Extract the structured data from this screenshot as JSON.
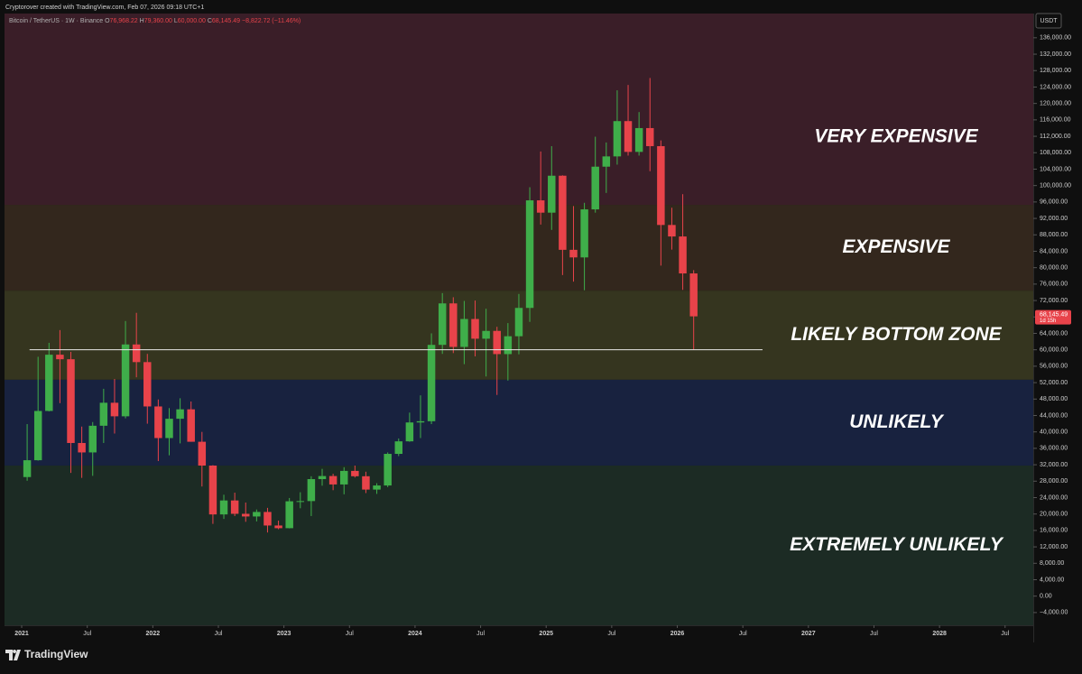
{
  "header": {
    "credit": "Cryptorover created with TradingView.com, Feb 07, 2026 09:18 UTC+1"
  },
  "legend": {
    "symbol": "Bitcoin / TetherUS · 1W · Binance",
    "o_label": "O",
    "open": "76,968.22",
    "h_label": "H",
    "high": "79,360.00",
    "l_label": "L",
    "low": "60,000.00",
    "c_label": "C",
    "close": "68,145.49",
    "change": "−8,822.72 (−11.46%)"
  },
  "footer": {
    "logo": "TradingView"
  },
  "chart_data": {
    "type": "candlestick",
    "currency": "USDT",
    "up_color": "#3fae4a",
    "down_color": "#e8434a",
    "xlim": [
      2020.869,
      2028.715
    ],
    "ylim": [
      -7100,
      141900
    ],
    "xticks": [
      2021,
      {
        "value": 2021.5,
        "label": "Jul"
      },
      2022,
      {
        "value": 2022.5,
        "label": "Jul"
      },
      2023,
      {
        "value": 2023.5,
        "label": "Jul"
      },
      2024,
      {
        "value": 2024.5,
        "label": "Jul"
      },
      2025,
      {
        "value": 2025.5,
        "label": "Jul"
      },
      2026,
      {
        "value": 2026.5,
        "label": "Jul"
      },
      2027,
      {
        "value": 2027.5,
        "label": "Jul"
      },
      2028,
      {
        "value": 2028.5,
        "label": "Jul"
      }
    ],
    "yticks": [
      {
        "value": -4000,
        "label": "−4,000.00"
      },
      {
        "value": 0,
        "label": "0.00"
      },
      {
        "value": 4000,
        "label": "4,000.00"
      },
      {
        "value": 8000,
        "label": "8,000.00"
      },
      {
        "value": 12000,
        "label": "12,000.00"
      },
      {
        "value": 16000,
        "label": "16,000.00"
      },
      {
        "value": 20000,
        "label": "20,000.00"
      },
      {
        "value": 24000,
        "label": "24,000.00"
      },
      {
        "value": 28000,
        "label": "28,000.00"
      },
      {
        "value": 32000,
        "label": "32,000.00"
      },
      {
        "value": 36000,
        "label": "36,000.00"
      },
      {
        "value": 40000,
        "label": "40,000.00"
      },
      {
        "value": 44000,
        "label": "44,000.00"
      },
      {
        "value": 48000,
        "label": "48,000.00"
      },
      {
        "value": 52000,
        "label": "52,000.00"
      },
      {
        "value": 56000,
        "label": "56,000.00"
      },
      {
        "value": 60000,
        "label": "60,000.00"
      },
      {
        "value": 64000,
        "label": "64,000.00"
      },
      {
        "value": 68000,
        "label": "68,000.00"
      },
      {
        "value": 72000,
        "label": "72,000.00"
      },
      {
        "value": 76000,
        "label": "76,000.00"
      },
      {
        "value": 80000,
        "label": "80,000.00"
      },
      {
        "value": 84000,
        "label": "84,000.00"
      },
      {
        "value": 88000,
        "label": "88,000.00"
      },
      {
        "value": 92000,
        "label": "92,000.00"
      },
      {
        "value": 96000,
        "label": "96,000.00"
      },
      {
        "value": 100000,
        "label": "100,000.00"
      },
      {
        "value": 104000,
        "label": "104,000.00"
      },
      {
        "value": 108000,
        "label": "108,000.00"
      },
      {
        "value": 112000,
        "label": "112,000.00"
      },
      {
        "value": 116000,
        "label": "116,000.00"
      },
      {
        "value": 120000,
        "label": "120,000.00"
      },
      {
        "value": 124000,
        "label": "124,000.00"
      },
      {
        "value": 128000,
        "label": "128,000.00"
      },
      {
        "value": 132000,
        "label": "132,000.00"
      },
      {
        "value": 136000,
        "label": "136,000.00"
      }
    ],
    "zones": [
      {
        "label": "VERY EXPENSIVE",
        "from": 95300,
        "to": 141900,
        "color": "#3a1e28"
      },
      {
        "label": "EXPENSIVE",
        "from": 74400,
        "to": 95300,
        "color": "#33271d"
      },
      {
        "label": "LIKELY BOTTOM ZONE",
        "from": 52700,
        "to": 74400,
        "color": "#35351f"
      },
      {
        "label": "UNLIKELY",
        "from": 31800,
        "to": 52700,
        "color": "#18223f"
      },
      {
        "label": "EXTREMELY UNLIKELY",
        "from": -7100,
        "to": 31800,
        "color": "#1c2b24"
      }
    ],
    "hline": {
      "value": 60000,
      "x": [
        2021.06,
        2026.65
      ]
    },
    "price_label": {
      "value": 68145.49,
      "label": "68,145.49",
      "countdown": "1d 15h"
    },
    "x": [
      "2021-01",
      "2021-02",
      "2021-03",
      "2021-04",
      "2021-05",
      "2021-06",
      "2021-07",
      "2021-08",
      "2021-09",
      "2021-10",
      "2021-11",
      "2021-12",
      "2022-01",
      "2022-02",
      "2022-03",
      "2022-04",
      "2022-05",
      "2022-06",
      "2022-07",
      "2022-08",
      "2022-09",
      "2022-10",
      "2022-11",
      "2022-12",
      "2023-01",
      "2023-02",
      "2023-03",
      "2023-04",
      "2023-05",
      "2023-06",
      "2023-07",
      "2023-08",
      "2023-09",
      "2023-10",
      "2023-11",
      "2023-12",
      "2024-01",
      "2024-02",
      "2024-03",
      "2024-04",
      "2024-05",
      "2024-06",
      "2024-07",
      "2024-08",
      "2024-09",
      "2024-10",
      "2024-11",
      "2024-12",
      "2025-01",
      "2025-02",
      "2025-03",
      "2025-04",
      "2025-05",
      "2025-06",
      "2025-07",
      "2025-08",
      "2025-09",
      "2025-10",
      "2025-11",
      "2025-12",
      "2026-01",
      "2026-02"
    ],
    "open": [
      29000,
      33100,
      45100,
      58800,
      57700,
      37300,
      35000,
      41500,
      47100,
      43800,
      61300,
      57000,
      46200,
      38500,
      43200,
      45500,
      37600,
      31800,
      19900,
      23300,
      20050,
      19400,
      20500,
      17200,
      16550,
      23100,
      23150,
      28500,
      29250,
      27200,
      30500,
      29200,
      25950,
      26950,
      34650,
      37700,
      42300,
      42600,
      61200,
      71300,
      60700,
      67500,
      62700,
      64600,
      58950,
      63300,
      70200,
      96400,
      93400,
      102400,
      84350,
      82500,
      94200,
      104600,
      107100,
      115700,
      108200,
      114000,
      109600,
      90400,
      87600,
      78600
    ],
    "high": [
      41900,
      58300,
      61700,
      64800,
      59500,
      41300,
      42400,
      50500,
      52900,
      67000,
      69000,
      59000,
      47900,
      45800,
      48200,
      47400,
      40000,
      31900,
      24700,
      25200,
      22800,
      21100,
      21500,
      18400,
      23900,
      25300,
      29200,
      31000,
      29800,
      31400,
      31800,
      30300,
      27500,
      35000,
      38400,
      44700,
      48900,
      64000,
      73800,
      72800,
      71900,
      72000,
      70000,
      65600,
      66500,
      73600,
      99600,
      108300,
      109600,
      102500,
      95000,
      95800,
      111900,
      110500,
      123200,
      124500,
      117900,
      126200,
      111000,
      94600,
      97900,
      79400
    ],
    "low": [
      28100,
      33000,
      45000,
      47000,
      30000,
      28800,
      29300,
      37300,
      39600,
      43300,
      53300,
      42000,
      32900,
      34300,
      37200,
      37600,
      26700,
      17600,
      18800,
      19500,
      18100,
      18200,
      15500,
      16300,
      16500,
      21400,
      19500,
      26900,
      25800,
      24800,
      28900,
      25100,
      24900,
      26550,
      34100,
      37600,
      38500,
      41900,
      59000,
      59200,
      56500,
      58400,
      53500,
      49000,
      52500,
      58900,
      66800,
      90500,
      89200,
      78200,
      76600,
      74500,
      93400,
      98200,
      105100,
      107300,
      107300,
      103500,
      80500,
      84400,
      74600,
      60000
    ],
    "close": [
      33100,
      45100,
      58800,
      57700,
      37300,
      35000,
      41500,
      47100,
      43800,
      61300,
      57000,
      46200,
      38500,
      43200,
      45500,
      37600,
      31800,
      19900,
      23300,
      20050,
      19400,
      20500,
      17200,
      16550,
      23100,
      23150,
      28500,
      29250,
      27200,
      30500,
      29200,
      25950,
      26950,
      34650,
      37700,
      42300,
      42600,
      61200,
      71300,
      60700,
      67500,
      62700,
      64600,
      58950,
      63300,
      70200,
      96400,
      93400,
      102400,
      84350,
      82500,
      94200,
      104600,
      107100,
      115700,
      108200,
      114000,
      109600,
      90400,
      87600,
      78600,
      68145.49
    ]
  }
}
